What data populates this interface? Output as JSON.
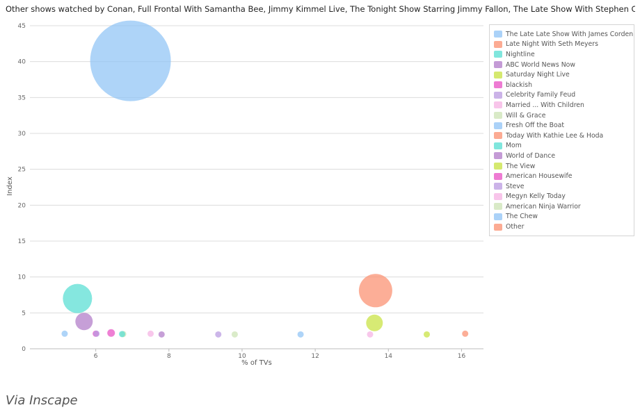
{
  "chart_data": {
    "type": "scatter",
    "title": "Other shows watched by Conan, Full Frontal With Samantha Bee, Jimmy Kimmel Live, The Tonight Show Starring Jimmy Fallon, The Late Show With Stephen Colbert ...",
    "xlabel": "% of TVs",
    "ylabel": "Index",
    "xlim": [
      4.2,
      16.6
    ],
    "ylim": [
      0,
      45
    ],
    "xticks": [
      6,
      8,
      10,
      12,
      14,
      16
    ],
    "yticks": [
      0,
      5,
      10,
      15,
      20,
      25,
      30,
      35,
      40,
      45
    ],
    "grid": "horizontal",
    "legend_position": "right",
    "series": [
      {
        "name": "The Late Late Show With James Corden",
        "color": "#8fc3f5",
        "x": 6.95,
        "y": 40.1,
        "size": 58
      },
      {
        "name": "Late Night With Seth Meyers",
        "color": "#fb8f6f",
        "x": 13.65,
        "y": 8.1,
        "size": 24
      },
      {
        "name": "Nightline",
        "color": "#56ded2",
        "x": 5.5,
        "y": 7.0,
        "size": 21
      },
      {
        "name": "ABC World News Now",
        "color": "#b07ac8",
        "x": 5.68,
        "y": 3.8,
        "size": 12.5
      },
      {
        "name": "Saturday Night Live",
        "color": "#c7e23f",
        "x": 13.62,
        "y": 3.6,
        "size": 12
      },
      {
        "name": "blackish",
        "color": "#e84fc4",
        "x": 6.0,
        "y": 2.1,
        "size": 4.5
      },
      {
        "name": "Celebrity Family Feud",
        "color": "#b99ae0",
        "x": 6.02,
        "y": 2.1,
        "size": 4.5
      },
      {
        "name": "Married ... With Children",
        "color": "#f5b2e3",
        "x": 7.5,
        "y": 2.1,
        "size": 4.5
      },
      {
        "name": "Will & Grace",
        "color": "#cce3b4",
        "x": 6.75,
        "y": 2.05,
        "size": 4.5
      },
      {
        "name": "Fresh Off the Boat",
        "color": "#8fc3f5",
        "x": 5.15,
        "y": 2.1,
        "size": 4.5
      },
      {
        "name": "Today With Kathie Lee & Hoda",
        "color": "#fb8f6f",
        "x": 16.1,
        "y": 2.1,
        "size": 4.5
      },
      {
        "name": "Mom",
        "color": "#56ded2",
        "x": 6.72,
        "y": 2.05,
        "size": 4.5
      },
      {
        "name": "World of Dance",
        "color": "#b07ac8",
        "x": 7.8,
        "y": 2.0,
        "size": 4.5
      },
      {
        "name": "The View",
        "color": "#c7e23f",
        "x": 15.05,
        "y": 2.0,
        "size": 4.5
      },
      {
        "name": "American Housewife",
        "color": "#e84fc4",
        "x": 6.42,
        "y": 2.2,
        "size": 5.5
      },
      {
        "name": "Steve",
        "color": "#b99ae0",
        "x": 9.35,
        "y": 2.0,
        "size": 4.5
      },
      {
        "name": "Megyn Kelly Today",
        "color": "#f5b2e3",
        "x": 13.5,
        "y": 2.0,
        "size": 4.5
      },
      {
        "name": "American Ninja Warrior",
        "color": "#cce3b4",
        "x": 9.8,
        "y": 2.0,
        "size": 4.5
      },
      {
        "name": "The Chew",
        "color": "#8fc3f5",
        "x": 11.6,
        "y": 2.0,
        "size": 4.5
      },
      {
        "name": "Other",
        "color": "#fb8f6f",
        "x": 6.2,
        "y": 2.0,
        "size": 0
      }
    ]
  },
  "source_note": "Via Inscape"
}
